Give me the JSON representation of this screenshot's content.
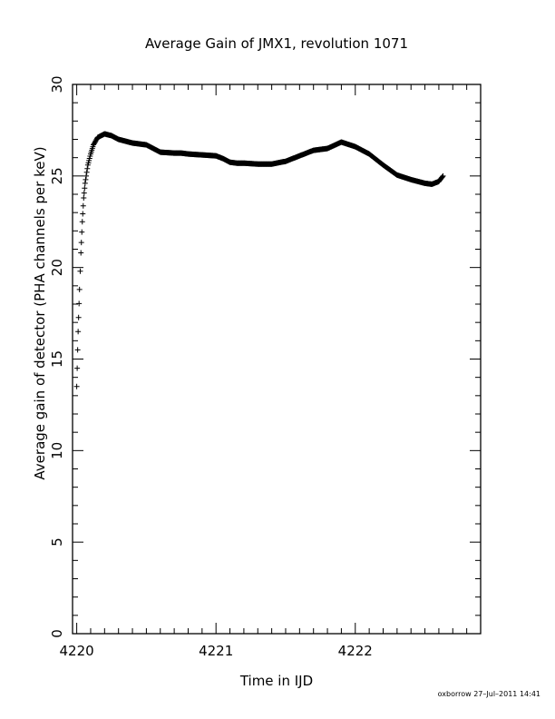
{
  "chart_data": {
    "type": "scatter",
    "title": "Average Gain of JMX1, revolution 1071",
    "xlabel": "Time in IJD",
    "ylabel": "Average gain of detector (PHA channels per keV)",
    "xlim": [
      4219.97,
      4222.9
    ],
    "ylim": [
      0,
      30
    ],
    "xticks": [
      4220,
      4221,
      4222
    ],
    "yticks": [
      0,
      5,
      10,
      15,
      20,
      25,
      30
    ],
    "grid": false,
    "marker": "plus",
    "color": "#000000",
    "series": [
      {
        "x": [
          4220.0,
          4220.01,
          4220.02,
          4220.03,
          4220.04,
          4220.05,
          4220.06,
          4220.08,
          4220.1,
          4220.12,
          4220.15,
          4220.2,
          4220.25,
          4220.3,
          4220.4,
          4220.5,
          4220.6,
          4220.7,
          4220.75,
          4220.8,
          4220.9,
          4221.0,
          4221.05,
          4221.1,
          4221.15,
          4221.2,
          4221.3,
          4221.4,
          4221.5,
          4221.6,
          4221.7,
          4221.8,
          4221.9,
          4222.0,
          4222.1,
          4222.2,
          4222.3,
          4222.4,
          4222.5,
          4222.55,
          4222.6,
          4222.63
        ],
        "y": [
          13.5,
          16.5,
          18.8,
          20.8,
          22.5,
          23.8,
          24.6,
          25.6,
          26.2,
          26.7,
          27.1,
          27.3,
          27.2,
          27.0,
          26.8,
          26.7,
          26.3,
          26.25,
          26.25,
          26.2,
          26.15,
          26.1,
          25.95,
          25.75,
          25.7,
          25.7,
          25.65,
          25.65,
          25.8,
          26.1,
          26.4,
          26.5,
          26.85,
          26.6,
          26.2,
          25.6,
          25.05,
          24.8,
          24.6,
          24.55,
          24.7,
          25.0
        ]
      }
    ]
  },
  "footer": "oxborrow 27–Jul–2011 14:41"
}
